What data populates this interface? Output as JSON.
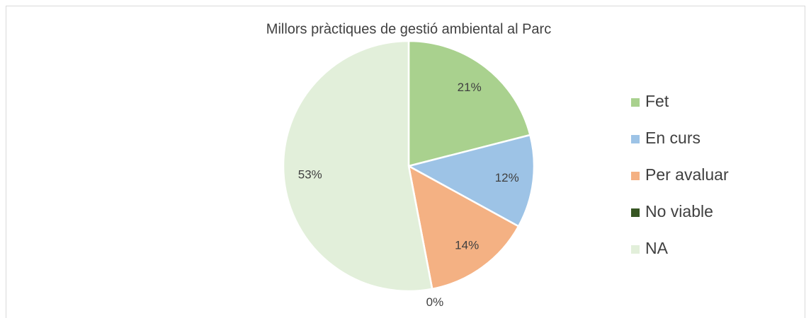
{
  "chart_data": {
    "type": "pie",
    "title": "Millors pràctiques de gestió ambiental al Parc",
    "categories": [
      "Fet",
      "En curs",
      "Per avaluar",
      "No viable",
      "NA"
    ],
    "values": [
      21,
      12,
      14,
      0,
      53
    ],
    "value_labels": [
      "21%",
      "12%",
      "14%",
      "0%",
      "53%"
    ],
    "colors": [
      "#a9d18e",
      "#9dc3e6",
      "#f4b183",
      "#375623",
      "#e2efda"
    ],
    "legend": "right"
  }
}
